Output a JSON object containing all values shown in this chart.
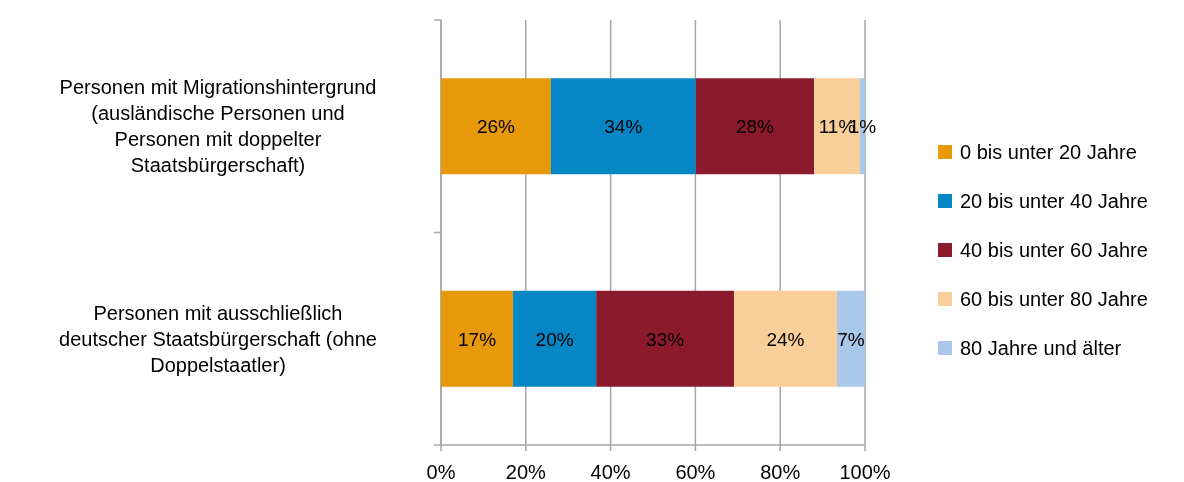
{
  "chart_data": {
    "type": "bar",
    "orientation": "horizontal",
    "stacked": true,
    "categories": [
      "Personen mit Migrationshintergrund (ausländische Personen und Personen mit doppelter Staatsbürgerschaft)",
      "Personen mit ausschließlich deutscher Staatsbürgerschaft (ohne Doppelstaatler)"
    ],
    "series": [
      {
        "name": "0 bis unter 20 Jahre",
        "color": "#e8990b",
        "values": [
          25.9,
          17.0
        ],
        "value_labels": [
          "26%",
          "17%"
        ]
      },
      {
        "name": "20 bis unter 40 Jahre",
        "color": "#0786c5",
        "values": [
          34.2,
          19.6
        ],
        "value_labels": [
          "34%",
          "20%"
        ]
      },
      {
        "name": "40 bis unter 60 Jahre",
        "color": "#8b1a2c",
        "values": [
          27.9,
          32.5
        ],
        "value_labels": [
          "28%",
          "33%"
        ]
      },
      {
        "name": "60 bis unter 80 Jahre",
        "color": "#f8cf9a",
        "values": [
          10.8,
          24.3
        ],
        "value_labels": [
          "11%",
          "24%"
        ]
      },
      {
        "name": "80 Jahre und älter",
        "color": "#a9c7e8",
        "values": [
          1.2,
          6.6
        ],
        "value_labels": [
          "1%",
          "7%"
        ]
      }
    ],
    "xlim": [
      0,
      100
    ],
    "xticks": [
      {
        "value": 0,
        "label": "0%"
      },
      {
        "value": 20,
        "label": "20%"
      },
      {
        "value": 40,
        "label": "40%"
      },
      {
        "value": 60,
        "label": "60%"
      },
      {
        "value": 80,
        "label": "80%"
      },
      {
        "value": 100,
        "label": "100%"
      }
    ],
    "grid": "x",
    "legend": "right"
  }
}
